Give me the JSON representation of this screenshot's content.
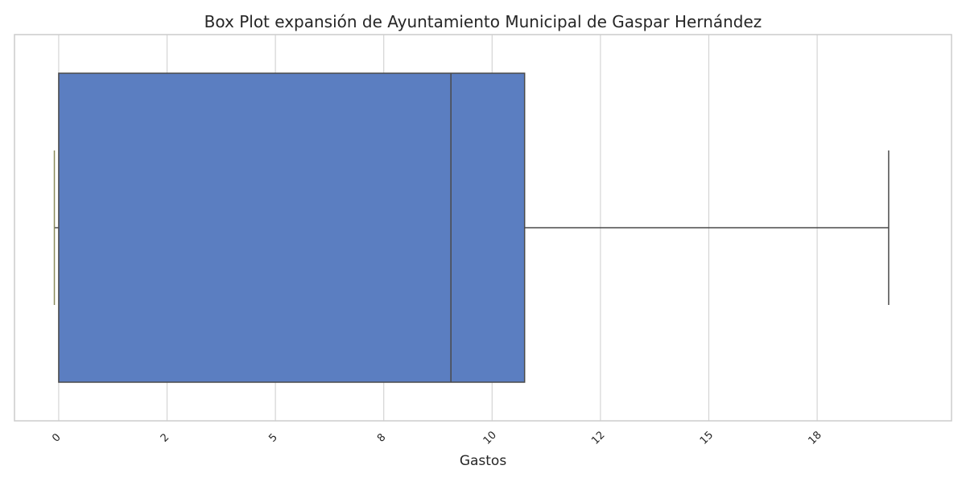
{
  "chart_data": {
    "type": "box",
    "title": "Box Plot expansión de Ayuntamiento Municipal de Gaspar Hernández",
    "xlabel": "Gastos",
    "ylabel": "",
    "orientation": "horizontal",
    "xlim": [
      -1.02,
      20.6
    ],
    "xticks": [
      0,
      2.5,
      5,
      7.5,
      10,
      12.5,
      15,
      17.5
    ],
    "xtick_labels": [
      "0",
      "2",
      "5",
      "8",
      "10",
      "12",
      "15",
      "18"
    ],
    "box": {
      "whisker_low": -0.1,
      "q1": 0,
      "median": 9.05,
      "q3": 10.75,
      "whisker_high": 19.15
    },
    "grid": true,
    "colors": {
      "box_fill": "#5b7ec1",
      "lines": "#4a4a4a",
      "grid": "#d4d4d4",
      "frame": "#cccccc"
    }
  }
}
